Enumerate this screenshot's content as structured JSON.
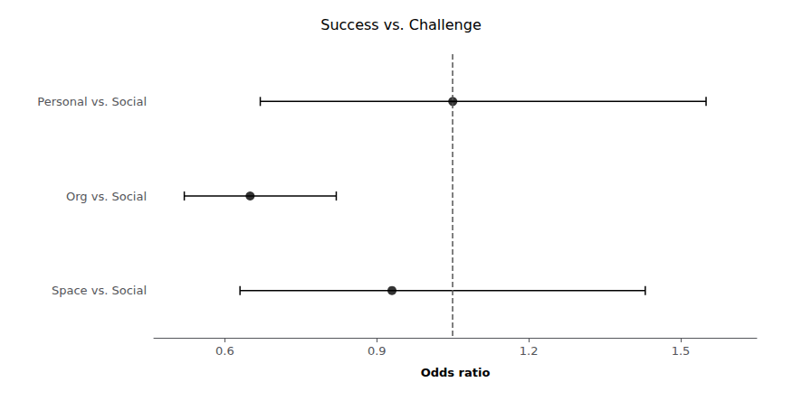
{
  "chart_data": {
    "type": "forest",
    "title": "Success vs. Challenge",
    "xlabel": "Odds ratio",
    "categories": [
      "Personal vs. Social",
      "Org vs. Social",
      "Space vs. Social"
    ],
    "values": [
      1.05,
      0.65,
      0.93
    ],
    "ci_lower": [
      0.67,
      0.52,
      0.63
    ],
    "ci_upper": [
      1.55,
      0.82,
      1.43
    ],
    "color": "#000000",
    "reference_line": {
      "x": 1.05,
      "color": "#555555",
      "line_style": "dashed"
    },
    "xlim": [
      0.46,
      1.65
    ],
    "xticks": [
      0.6,
      0.9,
      1.2,
      1.5
    ],
    "grid": false
  }
}
